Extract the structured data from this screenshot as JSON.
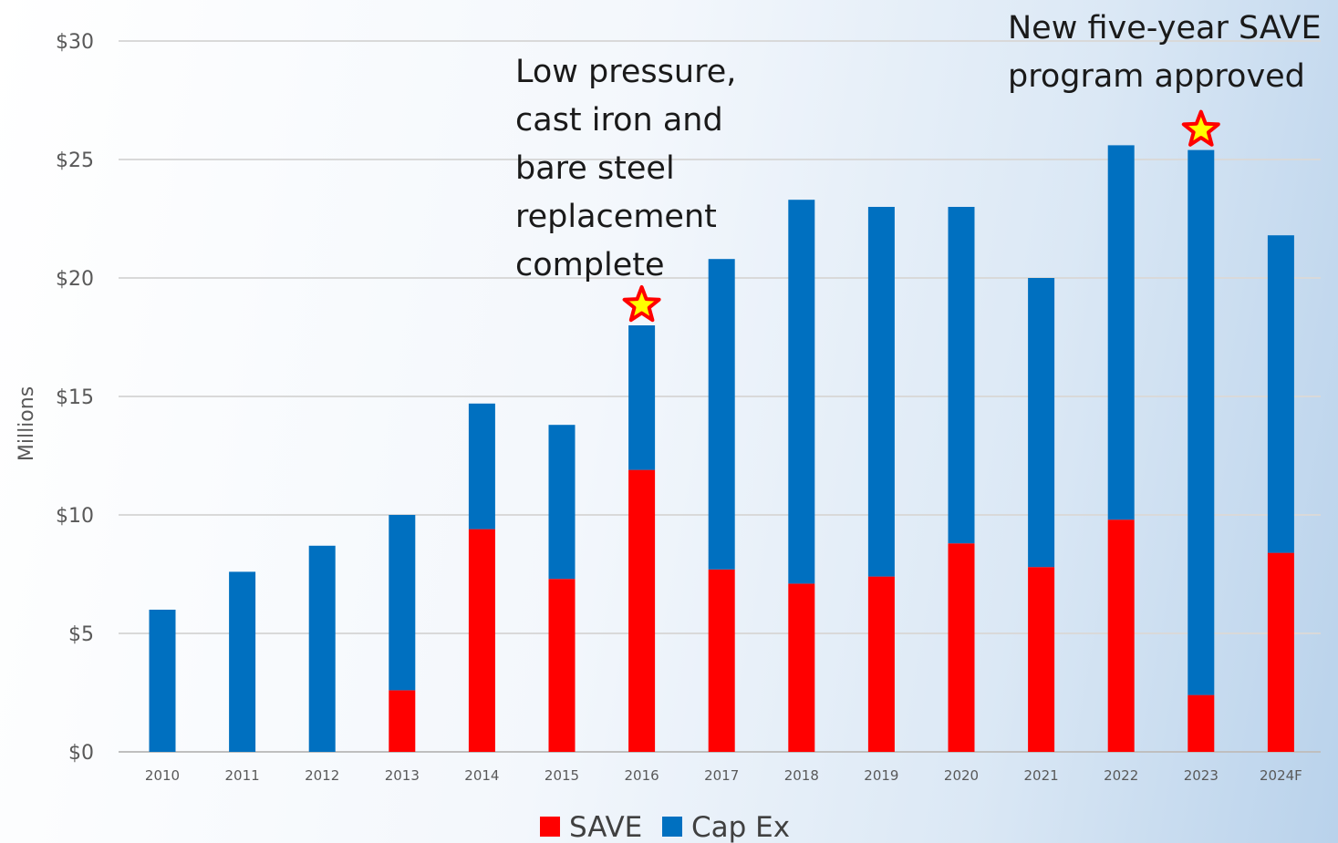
{
  "chart_data": {
    "type": "bar",
    "stacked": true,
    "title": "",
    "xlabel": "",
    "ylabel": "Millions",
    "ylim": [
      0,
      30
    ],
    "yticks": [
      0,
      5,
      10,
      15,
      20,
      25,
      30
    ],
    "ytick_labels": [
      "$0",
      "$5",
      "$10",
      "$15",
      "$20",
      "$25",
      "$30"
    ],
    "grid": true,
    "legend_position": "bottom",
    "categories": [
      "2010",
      "2011",
      "2012",
      "2013",
      "2014",
      "2015",
      "2016",
      "2017",
      "2018",
      "2019",
      "2020",
      "2021",
      "2022",
      "2023",
      "2024F"
    ],
    "series": [
      {
        "name": "SAVE",
        "color": "#ff0000",
        "values": [
          0,
          0,
          0,
          2.6,
          9.4,
          7.3,
          11.9,
          7.7,
          7.1,
          7.4,
          8.8,
          7.8,
          9.8,
          2.4,
          8.4
        ]
      },
      {
        "name": "Cap Ex",
        "color": "#0070c0",
        "values": [
          6.0,
          7.6,
          8.7,
          7.4,
          5.3,
          6.5,
          6.1,
          13.1,
          16.2,
          15.6,
          14.2,
          12.2,
          15.8,
          23.0,
          13.4
        ]
      }
    ],
    "annotations": [
      {
        "category": "2016",
        "marker": "star-icon",
        "lines": [
          "Low pressure,",
          "cast iron and",
          "bare steel",
          "replacement",
          "complete"
        ]
      },
      {
        "category": "2023",
        "marker": "star-icon",
        "lines": [
          "New five-year SAVE",
          "program approved"
        ]
      }
    ],
    "star_fill": "#ffff00",
    "star_stroke": "#ff0000"
  }
}
